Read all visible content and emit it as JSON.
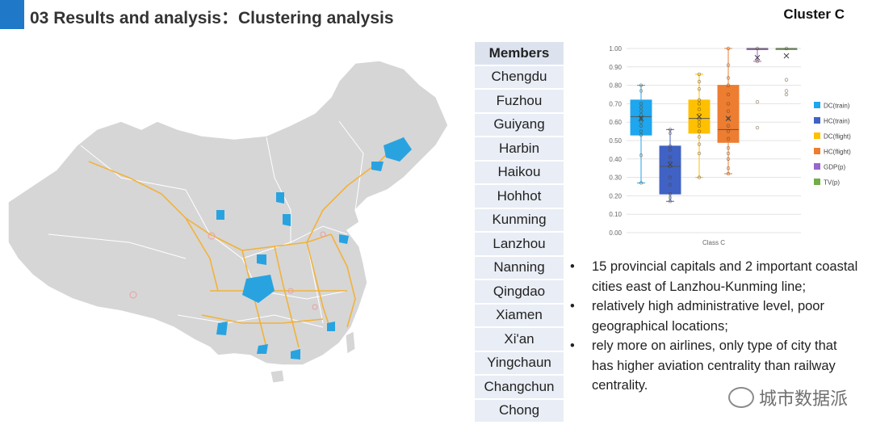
{
  "header": {
    "title": "03 Results and analysis：Clustering analysis",
    "cluster": "Cluster C"
  },
  "members": {
    "header": "Members",
    "items": [
      "Chengdu",
      "Fuzhou",
      "Guiyang",
      "Harbin",
      "Haikou",
      "Hohhot",
      "Kunming",
      "Lanzhou",
      "Nanning",
      "Qingdao",
      "Xiamen",
      "Xi'an",
      "Yingchaun",
      "Changchun",
      "Chong"
    ]
  },
  "bullets": [
    "15 provincial capitals and 2 important coastal cities east of Lanzhou-Kunming line;",
    " relatively high administrative level, poor geographical locations;",
    "rely more on airlines, only type of city that has higher aviation centrality than railway centrality."
  ],
  "watermark": "城市数据派",
  "colors": {
    "accent": "#1F78C8",
    "map_fill": "#D6D6D6",
    "highlight": "#29A3E0",
    "rail": "#F2B23A"
  },
  "chart_data": {
    "type": "box",
    "categories": [
      "Class C"
    ],
    "ylim": [
      0,
      1
    ],
    "yticks": [
      "0.00",
      "0.10",
      "0.20",
      "0.30",
      "0.40",
      "0.50",
      "0.60",
      "0.70",
      "0.80",
      "0.90",
      "1.00"
    ],
    "series": [
      {
        "name": "DC(train)",
        "color": "#1EA6EE",
        "min": 0.27,
        "q1": 0.53,
        "median": 0.63,
        "q3": 0.72,
        "max": 0.8,
        "mean": 0.62,
        "points": [
          0.8,
          0.77,
          0.7,
          0.68,
          0.66,
          0.64,
          0.62,
          0.6,
          0.58,
          0.55,
          0.53,
          0.42,
          0.27
        ]
      },
      {
        "name": "HC(train)",
        "color": "#3F62C4",
        "min": 0.17,
        "q1": 0.21,
        "median": 0.36,
        "q3": 0.47,
        "max": 0.56,
        "mean": 0.37,
        "points": [
          0.56,
          0.54,
          0.47,
          0.45,
          0.41,
          0.38,
          0.36,
          0.3,
          0.26,
          0.21,
          0.19,
          0.17
        ]
      },
      {
        "name": "DC(flight)",
        "color": "#FFC000",
        "min": 0.3,
        "q1": 0.54,
        "median": 0.62,
        "q3": 0.72,
        "max": 0.86,
        "mean": 0.63,
        "points": [
          0.86,
          0.82,
          0.78,
          0.72,
          0.7,
          0.67,
          0.64,
          0.62,
          0.6,
          0.58,
          0.55,
          0.52,
          0.48,
          0.43,
          0.3
        ]
      },
      {
        "name": "HC(flight)",
        "color": "#ED7D31",
        "min": 0.32,
        "q1": 0.49,
        "median": 0.56,
        "q3": 0.8,
        "max": 1.0,
        "mean": 0.62,
        "points": [
          1.0,
          0.91,
          0.84,
          0.8,
          0.75,
          0.7,
          0.66,
          0.62,
          0.58,
          0.55,
          0.51,
          0.46,
          0.43,
          0.4,
          0.35,
          0.32
        ]
      },
      {
        "name": "GDP(p)",
        "color": "#9966CC",
        "min": 0.93,
        "q1": 1.0,
        "median": 1.0,
        "q3": 1.0,
        "max": 1.0,
        "mean": 0.95,
        "points": [
          1.0,
          0.93,
          0.71,
          0.57
        ]
      },
      {
        "name": "TV(p)",
        "color": "#70AD47",
        "min": 1.0,
        "q1": 1.0,
        "median": 1.0,
        "q3": 1.0,
        "max": 1.0,
        "mean": 0.96,
        "points": [
          1.0,
          0.83,
          0.77,
          0.75
        ]
      }
    ]
  }
}
